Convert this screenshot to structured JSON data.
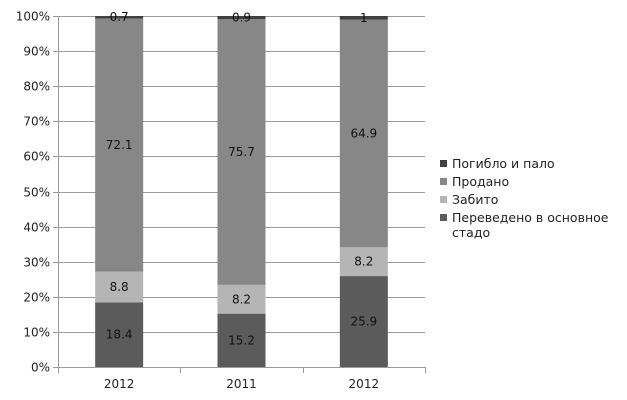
{
  "chart_data": {
    "type": "bar",
    "stacked": true,
    "categories": [
      "2012",
      "2011",
      "2012"
    ],
    "series": [
      {
        "name": "Переведено в основное стадо",
        "values": [
          18.4,
          15.2,
          25.9
        ],
        "labels": [
          "18.4",
          "15.2",
          "25.9"
        ],
        "color": "#5b5b5b"
      },
      {
        "name": "Забито",
        "values": [
          8.8,
          8.2,
          8.2
        ],
        "labels": [
          "8.8",
          "8.2",
          "8.2"
        ],
        "color": "#b5b5b5"
      },
      {
        "name": "Продано",
        "values": [
          72.1,
          75.7,
          64.9
        ],
        "labels": [
          "72.1",
          "75.7",
          "64.9"
        ],
        "color": "#878787"
      },
      {
        "name": "Погибло и пало",
        "values": [
          0.7,
          0.9,
          1
        ],
        "labels": [
          "0.7",
          "0.9",
          "1"
        ],
        "color": "#404040"
      }
    ],
    "y_ticks": [
      "0%",
      "10%",
      "20%",
      "30%",
      "40%",
      "50%",
      "60%",
      "70%",
      "80%",
      "90%",
      "100%"
    ],
    "ylim": [
      0,
      100
    ],
    "grid": true,
    "legend_position": "right"
  }
}
